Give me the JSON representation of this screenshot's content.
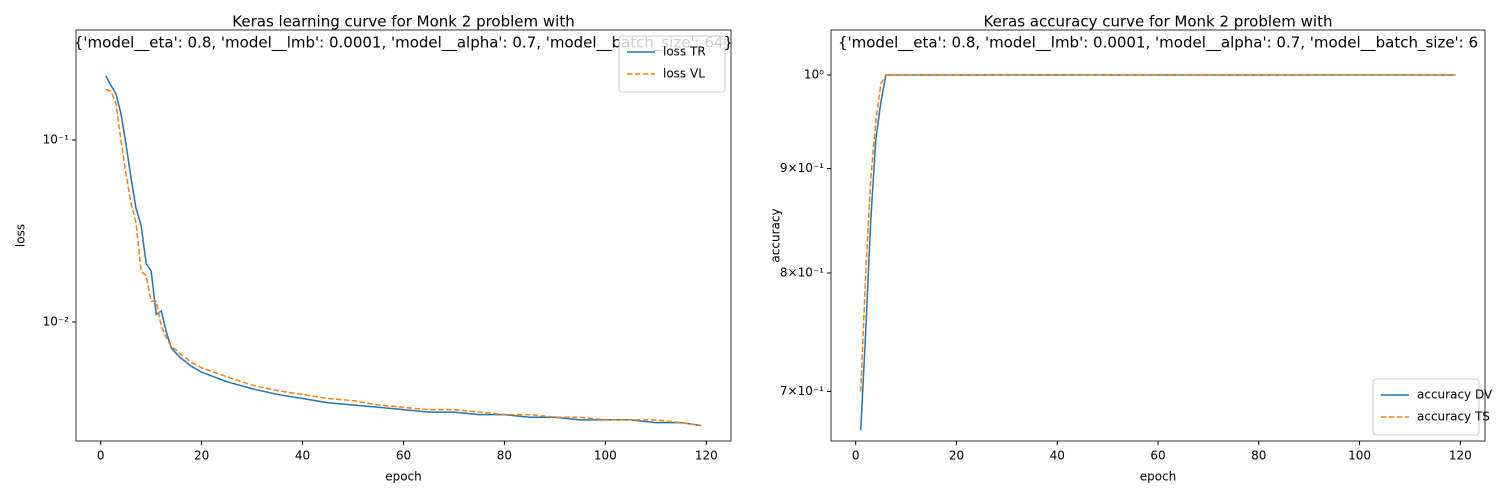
{
  "chart_data": [
    {
      "type": "line",
      "title": [
        "Keras learning curve for Monk 2 problem with",
        "{'model__eta': 0.8, 'model__lmb': 0.0001, 'model__alpha': 0.7, 'model__batch_size': 64}"
      ],
      "xlabel": "epoch",
      "ylabel": "loss",
      "log_y": true,
      "legend": "upper right",
      "x": [
        1,
        2,
        3,
        4,
        5,
        6,
        7,
        8,
        9,
        10,
        11,
        12,
        13,
        14,
        15,
        16,
        17,
        18,
        19,
        20,
        25,
        30,
        35,
        40,
        45,
        50,
        55,
        60,
        65,
        70,
        75,
        80,
        85,
        90,
        95,
        100,
        105,
        110,
        115,
        119
      ],
      "series": [
        {
          "name": "loss TR",
          "color": "#1f77b4",
          "dash": false,
          "values": [
            0.225,
            0.2,
            0.18,
            0.14,
            0.095,
            0.062,
            0.042,
            0.034,
            0.021,
            0.019,
            0.011,
            0.0115,
            0.0088,
            0.0072,
            0.0067,
            0.0063,
            0.006,
            0.0057,
            0.0055,
            0.0053,
            0.0047,
            0.0043,
            0.004,
            0.0038,
            0.0036,
            0.0035,
            0.0034,
            0.0033,
            0.0032,
            0.0032,
            0.0031,
            0.0031,
            0.003,
            0.003,
            0.0029,
            0.0029,
            0.0029,
            0.0028,
            0.0028,
            0.0027
          ]
        },
        {
          "name": "loss VL",
          "color": "#ff7f0e",
          "dash": true,
          "values": [
            0.19,
            0.185,
            0.16,
            0.1,
            0.065,
            0.045,
            0.035,
            0.019,
            0.018,
            0.013,
            0.013,
            0.0095,
            0.0082,
            0.0073,
            0.007,
            0.0066,
            0.0063,
            0.006,
            0.0058,
            0.0056,
            0.005,
            0.0045,
            0.0042,
            0.004,
            0.0038,
            0.0037,
            0.0035,
            0.0034,
            0.0033,
            0.0033,
            0.0032,
            0.0031,
            0.0031,
            0.003,
            0.003,
            0.0029,
            0.0029,
            0.0029,
            0.0028,
            0.0027
          ]
        }
      ],
      "xlim": [
        -4.9,
        124.9
      ],
      "xticks": [
        0,
        20,
        40,
        60,
        80,
        100,
        120
      ],
      "ylim": [
        0.00222,
        0.402
      ],
      "yticks": [
        {
          "value": 0.1,
          "label": "10⁻¹"
        },
        {
          "value": 0.01,
          "label": "10⁻²"
        }
      ]
    },
    {
      "type": "line",
      "title": [
        "Keras accuracy curve for Monk 2 problem with",
        "{'model__eta': 0.8, 'model__lmb': 0.0001, 'model__alpha': 0.7, 'model__batch_size': 6"
      ],
      "xlabel": "epoch",
      "ylabel": "accuracy",
      "log_y": true,
      "legend": "lower right",
      "x": [
        1,
        2,
        3,
        4,
        5,
        6,
        7,
        8,
        9,
        10,
        11,
        12,
        13,
        14,
        15,
        16,
        17,
        18,
        19,
        20,
        25,
        30,
        35,
        40,
        45,
        50,
        55,
        60,
        65,
        70,
        75,
        80,
        85,
        90,
        95,
        100,
        105,
        110,
        115,
        119
      ],
      "series": [
        {
          "name": "accuracy DV",
          "color": "#1f77b4",
          "dash": false,
          "values": [
            0.67,
            0.75,
            0.85,
            0.93,
            0.97,
            1,
            1,
            1,
            1,
            1,
            1,
            1,
            1,
            1,
            1,
            1,
            1,
            1,
            1,
            1,
            1,
            1,
            1,
            1,
            1,
            1,
            1,
            1,
            1,
            1,
            1,
            1,
            1,
            1,
            1,
            1,
            1,
            1,
            1,
            1
          ]
        },
        {
          "name": "accuracy TS",
          "color": "#ff7f0e",
          "dash": true,
          "values": [
            0.7,
            0.8,
            0.89,
            0.95,
            0.99,
            1,
            1,
            1,
            1,
            1,
            1,
            1,
            1,
            1,
            1,
            1,
            1,
            1,
            1,
            1,
            1,
            1,
            1,
            1,
            1,
            1,
            1,
            1,
            1,
            1,
            1,
            1,
            1,
            1,
            1,
            1,
            1,
            1,
            1,
            1
          ]
        }
      ],
      "xlim": [
        -4.9,
        124.9
      ],
      "xticks": [
        0,
        20,
        40,
        60,
        80,
        100,
        120
      ],
      "ylim": [
        0.662,
        1.052
      ],
      "yticks": [
        {
          "value": 0.7,
          "label": "7×10⁻¹"
        },
        {
          "value": 0.8,
          "label": "8×10⁻¹"
        },
        {
          "value": 0.9,
          "label": "9×10⁻¹"
        },
        {
          "value": 1,
          "label": "10⁰"
        }
      ]
    }
  ]
}
